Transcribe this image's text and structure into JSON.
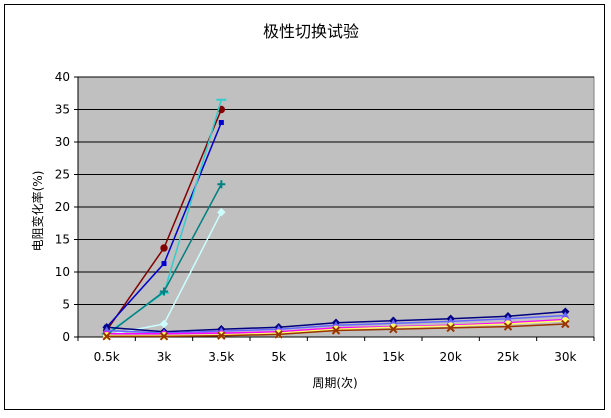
{
  "chart_data": {
    "type": "line",
    "title": "极性切换试验",
    "xlabel": "周期(次)",
    "ylabel": "电阻变化率(%)",
    "categories": [
      "0.5k",
      "3k",
      "3.5k",
      "5k",
      "10k",
      "15k",
      "20k",
      "25k",
      "30k"
    ],
    "ylim": [
      0,
      40
    ],
    "yticks": [
      0,
      5,
      10,
      15,
      20,
      25,
      30,
      35,
      40
    ],
    "grid": true,
    "legend": "none",
    "plot_background": "#c0c0c0",
    "series": [
      {
        "color": "#800000",
        "marker": "circle",
        "values": [
          1.0,
          13.7,
          35.0,
          null,
          null,
          null,
          null,
          null,
          null
        ]
      },
      {
        "color": "#0000cc",
        "marker": "square",
        "values": [
          1.5,
          11.3,
          33.0,
          null,
          null,
          null,
          null,
          null,
          null
        ]
      },
      {
        "color": "#33cccc",
        "marker": "dash",
        "values": [
          0.5,
          6.8,
          36.5,
          null,
          null,
          null,
          null,
          null,
          null
        ]
      },
      {
        "color": "#008080",
        "marker": "plus",
        "values": [
          0.3,
          7.0,
          23.5,
          null,
          null,
          null,
          null,
          null,
          null
        ]
      },
      {
        "color": "#ccffff",
        "marker": "diamond",
        "values": [
          0.3,
          2.0,
          19.2,
          null,
          null,
          null,
          null,
          null,
          null
        ]
      },
      {
        "color": "#000080",
        "marker": "diamond",
        "values": [
          1.5,
          0.8,
          1.2,
          1.5,
          2.2,
          2.5,
          2.8,
          3.2,
          3.9
        ]
      },
      {
        "color": "#6666ff",
        "marker": "triangle",
        "values": [
          1.0,
          0.6,
          0.9,
          1.2,
          1.8,
          2.1,
          2.4,
          2.8,
          3.3
        ]
      },
      {
        "color": "#ff00ff",
        "marker": "square",
        "values": [
          0.5,
          0.5,
          0.6,
          0.8,
          1.4,
          1.6,
          1.8,
          2.2,
          2.7
        ]
      },
      {
        "color": "#ffff66",
        "marker": "circle",
        "values": [
          0.2,
          0.2,
          0.3,
          0.6,
          1.2,
          1.5,
          1.7,
          2.0,
          2.5
        ]
      },
      {
        "color": "#993300",
        "marker": "x",
        "values": [
          0.1,
          0.1,
          0.2,
          0.4,
          1.0,
          1.2,
          1.4,
          1.6,
          2.0
        ]
      }
    ]
  }
}
